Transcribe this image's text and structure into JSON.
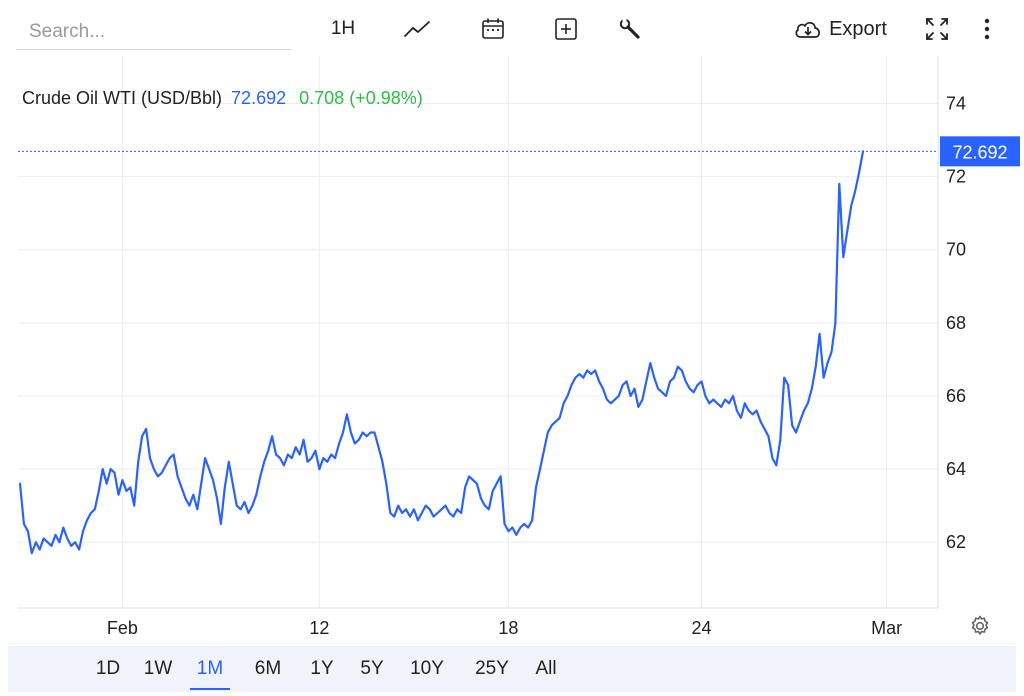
{
  "toolbar": {
    "search_placeholder": "Search...",
    "interval": "1H",
    "export_label": "Export",
    "icons": [
      "line-chart-icon",
      "calendar-icon",
      "add-indicator-icon",
      "wrench-icon",
      "cloud-download-icon",
      "fullscreen-icon",
      "more-vertical-icon"
    ]
  },
  "legend": {
    "name": "Crude Oil WTI (USD/Bbl)",
    "last": "72.692",
    "change": "0.708",
    "change_pct": "(+0.98%)"
  },
  "colors": {
    "line": "#2962ff",
    "change_up": "#2ebd44",
    "grid": "#eeeeee",
    "range_bar_bg": "#f0f3fa"
  },
  "chart_data": {
    "type": "line",
    "title": "Crude Oil WTI (USD/Bbl)",
    "xlabel": "",
    "ylabel": "",
    "x_ticks": [
      {
        "label": "Feb",
        "t": 26
      },
      {
        "label": "12",
        "t": 76
      },
      {
        "label": "18",
        "t": 124
      },
      {
        "label": "24",
        "t": 173
      },
      {
        "label": "Mar",
        "t": 220
      }
    ],
    "y_ticks": [
      62,
      64,
      66,
      68,
      70,
      72,
      74
    ],
    "ylim": [
      60.2,
      75.3
    ],
    "xlim": [
      0,
      230
    ],
    "grid": true,
    "last_value_label": "72.692",
    "current_value": 72.692,
    "series": [
      {
        "points": [
          [
            0,
            63.6
          ],
          [
            1,
            62.5
          ],
          [
            2,
            62.3
          ],
          [
            3,
            61.7
          ],
          [
            4,
            62.0
          ],
          [
            5,
            61.8
          ],
          [
            6,
            62.1
          ],
          [
            7,
            62.0
          ],
          [
            8,
            61.9
          ],
          [
            9,
            62.2
          ],
          [
            10,
            62.0
          ],
          [
            11,
            62.4
          ],
          [
            12,
            62.1
          ],
          [
            13,
            61.9
          ],
          [
            14,
            62.0
          ],
          [
            15,
            61.8
          ],
          [
            16,
            62.3
          ],
          [
            17,
            62.6
          ],
          [
            18,
            62.8
          ],
          [
            19,
            62.9
          ],
          [
            20,
            63.4
          ],
          [
            21,
            64.0
          ],
          [
            22,
            63.6
          ],
          [
            23,
            64.0
          ],
          [
            24,
            63.9
          ],
          [
            25,
            63.3
          ],
          [
            26,
            63.7
          ],
          [
            27,
            63.4
          ],
          [
            28,
            63.5
          ],
          [
            29,
            63.0
          ],
          [
            30,
            64.2
          ],
          [
            31,
            64.9
          ],
          [
            32,
            65.1
          ],
          [
            33,
            64.3
          ],
          [
            34,
            64.0
          ],
          [
            35,
            63.8
          ],
          [
            36,
            63.9
          ],
          [
            37,
            64.1
          ],
          [
            38,
            64.3
          ],
          [
            39,
            64.4
          ],
          [
            40,
            63.8
          ],
          [
            41,
            63.5
          ],
          [
            42,
            63.2
          ],
          [
            43,
            63.0
          ],
          [
            44,
            63.3
          ],
          [
            45,
            62.9
          ],
          [
            46,
            63.6
          ],
          [
            47,
            64.3
          ],
          [
            48,
            64.0
          ],
          [
            49,
            63.7
          ],
          [
            50,
            63.2
          ],
          [
            51,
            62.5
          ],
          [
            52,
            63.5
          ],
          [
            53,
            64.2
          ],
          [
            54,
            63.6
          ],
          [
            55,
            63.0
          ],
          [
            56,
            62.9
          ],
          [
            57,
            63.1
          ],
          [
            58,
            62.8
          ],
          [
            59,
            63.0
          ],
          [
            60,
            63.3
          ],
          [
            61,
            63.8
          ],
          [
            62,
            64.2
          ],
          [
            63,
            64.5
          ],
          [
            64,
            64.9
          ],
          [
            65,
            64.4
          ],
          [
            66,
            64.3
          ],
          [
            67,
            64.1
          ],
          [
            68,
            64.4
          ],
          [
            69,
            64.3
          ],
          [
            70,
            64.6
          ],
          [
            71,
            64.4
          ],
          [
            72,
            64.8
          ],
          [
            73,
            64.2
          ],
          [
            74,
            64.3
          ],
          [
            75,
            64.5
          ],
          [
            76,
            64.0
          ],
          [
            77,
            64.3
          ],
          [
            78,
            64.2
          ],
          [
            79,
            64.4
          ],
          [
            80,
            64.3
          ],
          [
            81,
            64.7
          ],
          [
            82,
            65.0
          ],
          [
            83,
            65.5
          ],
          [
            84,
            65.0
          ],
          [
            85,
            64.7
          ],
          [
            86,
            64.8
          ],
          [
            87,
            65.0
          ],
          [
            88,
            64.9
          ],
          [
            89,
            65.0
          ],
          [
            90,
            65.0
          ],
          [
            91,
            64.6
          ],
          [
            92,
            64.2
          ],
          [
            93,
            63.6
          ],
          [
            94,
            62.8
          ],
          [
            95,
            62.7
          ],
          [
            96,
            63.0
          ],
          [
            97,
            62.8
          ],
          [
            98,
            62.9
          ],
          [
            99,
            62.7
          ],
          [
            100,
            62.9
          ],
          [
            101,
            62.6
          ],
          [
            102,
            62.8
          ],
          [
            103,
            63.0
          ],
          [
            104,
            62.9
          ],
          [
            105,
            62.7
          ],
          [
            106,
            62.8
          ],
          [
            107,
            62.9
          ],
          [
            108,
            63.0
          ],
          [
            109,
            62.8
          ],
          [
            110,
            62.7
          ],
          [
            111,
            62.9
          ],
          [
            112,
            62.8
          ],
          [
            113,
            63.5
          ],
          [
            114,
            63.8
          ],
          [
            115,
            63.7
          ],
          [
            116,
            63.6
          ],
          [
            117,
            63.2
          ],
          [
            118,
            63.0
          ],
          [
            119,
            62.9
          ],
          [
            120,
            63.4
          ],
          [
            121,
            63.6
          ],
          [
            122,
            63.8
          ],
          [
            123,
            62.5
          ],
          [
            124,
            62.3
          ],
          [
            125,
            62.4
          ],
          [
            126,
            62.2
          ],
          [
            127,
            62.4
          ],
          [
            128,
            62.5
          ],
          [
            129,
            62.4
          ],
          [
            130,
            62.6
          ],
          [
            131,
            63.5
          ],
          [
            132,
            64.0
          ],
          [
            133,
            64.5
          ],
          [
            134,
            65.0
          ],
          [
            135,
            65.2
          ],
          [
            136,
            65.3
          ],
          [
            137,
            65.4
          ],
          [
            138,
            65.8
          ],
          [
            139,
            66.0
          ],
          [
            140,
            66.3
          ],
          [
            141,
            66.5
          ],
          [
            142,
            66.6
          ],
          [
            143,
            66.5
          ],
          [
            144,
            66.7
          ],
          [
            145,
            66.6
          ],
          [
            146,
            66.7
          ],
          [
            147,
            66.4
          ],
          [
            148,
            66.2
          ],
          [
            149,
            65.9
          ],
          [
            150,
            65.8
          ],
          [
            151,
            65.9
          ],
          [
            152,
            66.0
          ],
          [
            153,
            66.3
          ],
          [
            154,
            66.4
          ],
          [
            155,
            66.0
          ],
          [
            156,
            66.2
          ],
          [
            157,
            65.7
          ],
          [
            158,
            65.9
          ],
          [
            159,
            66.4
          ],
          [
            160,
            66.9
          ],
          [
            161,
            66.5
          ],
          [
            162,
            66.2
          ],
          [
            163,
            66.1
          ],
          [
            164,
            66.0
          ],
          [
            165,
            66.4
          ],
          [
            166,
            66.5
          ],
          [
            167,
            66.8
          ],
          [
            168,
            66.7
          ],
          [
            169,
            66.4
          ],
          [
            170,
            66.2
          ],
          [
            171,
            66.1
          ],
          [
            172,
            66.3
          ],
          [
            173,
            66.4
          ],
          [
            174,
            66.0
          ],
          [
            175,
            65.8
          ],
          [
            176,
            65.9
          ],
          [
            177,
            65.8
          ],
          [
            178,
            65.7
          ],
          [
            179,
            65.9
          ],
          [
            180,
            65.8
          ],
          [
            181,
            66.0
          ],
          [
            182,
            65.6
          ],
          [
            183,
            65.4
          ],
          [
            184,
            65.8
          ],
          [
            185,
            65.6
          ],
          [
            186,
            65.5
          ],
          [
            187,
            65.6
          ],
          [
            188,
            65.3
          ],
          [
            189,
            65.1
          ],
          [
            190,
            64.9
          ],
          [
            191,
            64.3
          ],
          [
            192,
            64.1
          ],
          [
            193,
            64.8
          ],
          [
            194,
            66.5
          ],
          [
            195,
            66.3
          ],
          [
            196,
            65.2
          ],
          [
            197,
            65.0
          ],
          [
            198,
            65.3
          ],
          [
            199,
            65.6
          ],
          [
            200,
            65.8
          ],
          [
            201,
            66.2
          ],
          [
            202,
            66.8
          ],
          [
            203,
            67.7
          ],
          [
            204,
            66.5
          ],
          [
            205,
            66.9
          ],
          [
            206,
            67.2
          ],
          [
            207,
            68.0
          ],
          [
            208,
            71.8
          ],
          [
            209,
            69.8
          ],
          [
            210,
            70.5
          ],
          [
            211,
            71.2
          ],
          [
            212,
            71.6
          ],
          [
            213,
            72.1
          ],
          [
            214,
            72.692
          ]
        ]
      }
    ]
  },
  "range_buttons": [
    "1D",
    "1W",
    "1M",
    "6M",
    "1Y",
    "5Y",
    "10Y",
    "25Y",
    "All"
  ],
  "range_active": "1M"
}
